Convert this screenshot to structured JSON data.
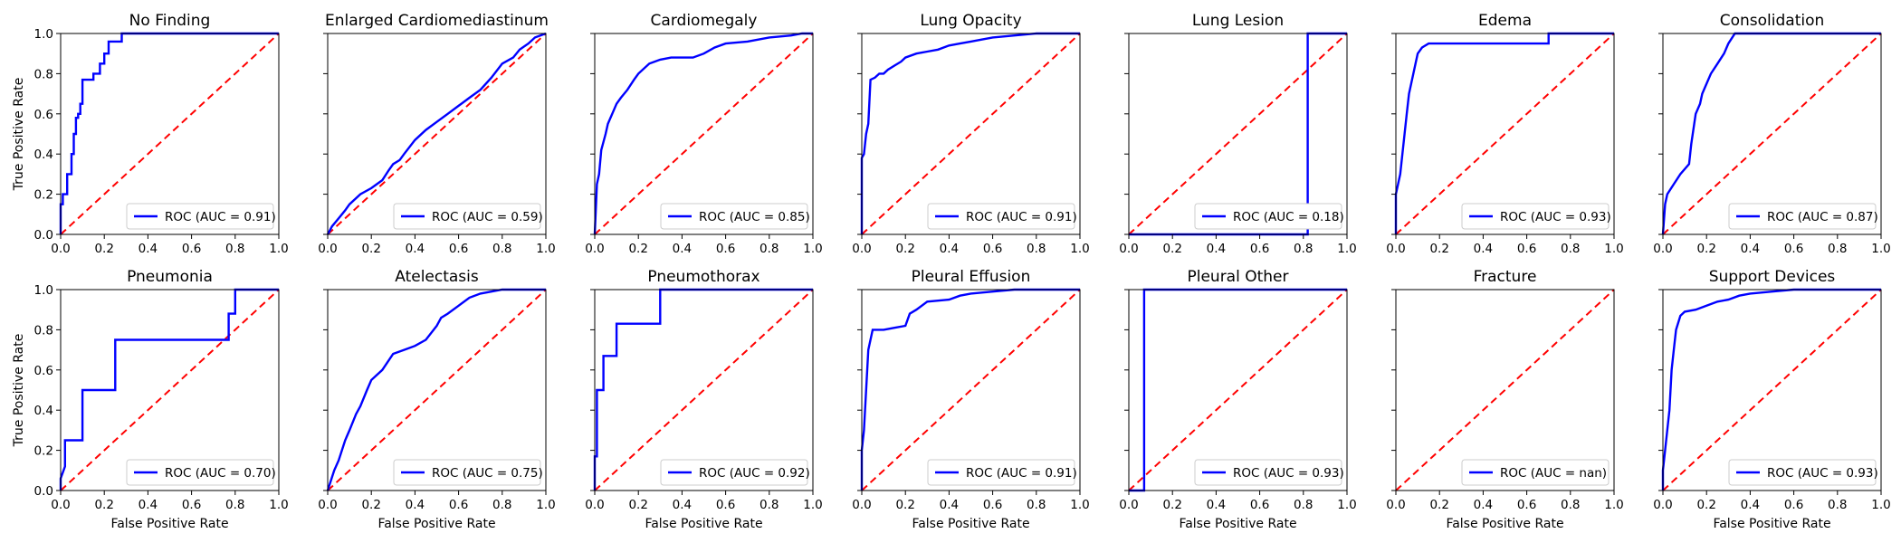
{
  "figure": {
    "xlabel": "False Positive Rate",
    "ylabel": "True Positive Rate",
    "x_ticks": [
      "0.0",
      "0.2",
      "0.4",
      "0.6",
      "0.8",
      "1.0"
    ],
    "y_ticks": [
      "0.0",
      "0.2",
      "0.4",
      "0.6",
      "0.8",
      "1.0"
    ],
    "roc_color": "#0000ff",
    "chance_color": "#ff0000"
  },
  "chart_data": [
    {
      "type": "line",
      "title": "No Finding",
      "legend": "ROC (AUC = 0.91)",
      "xlim": [
        0,
        1
      ],
      "ylim": [
        0,
        1
      ],
      "series": [
        {
          "x": [
            0,
            0,
            0.01,
            0.01,
            0.03,
            0.03,
            0.05,
            0.05,
            0.06,
            0.06,
            0.07,
            0.07,
            0.08,
            0.08,
            0.09,
            0.09,
            0.1,
            0.1,
            0.15,
            0.15,
            0.18,
            0.18,
            0.2,
            0.2,
            0.22,
            0.22,
            0.28,
            0.28,
            1
          ],
          "y": [
            0,
            0.15,
            0.15,
            0.2,
            0.2,
            0.3,
            0.3,
            0.4,
            0.4,
            0.5,
            0.5,
            0.58,
            0.58,
            0.6,
            0.6,
            0.65,
            0.65,
            0.77,
            0.77,
            0.8,
            0.8,
            0.85,
            0.85,
            0.9,
            0.9,
            0.96,
            0.96,
            1,
            1
          ]
        },
        {
          "x": [
            0,
            1
          ],
          "y": [
            0,
            1
          ]
        }
      ]
    },
    {
      "type": "line",
      "title": "Enlarged Cardiomediastinum",
      "legend": "ROC (AUC = 0.59)",
      "xlim": [
        0,
        1
      ],
      "ylim": [
        0,
        1
      ],
      "series": [
        {
          "x": [
            0,
            0.02,
            0.05,
            0.08,
            0.1,
            0.15,
            0.2,
            0.25,
            0.28,
            0.3,
            0.33,
            0.35,
            0.4,
            0.45,
            0.5,
            0.55,
            0.6,
            0.65,
            0.7,
            0.75,
            0.8,
            0.85,
            0.88,
            0.92,
            0.95,
            1
          ],
          "y": [
            0,
            0.04,
            0.08,
            0.12,
            0.15,
            0.2,
            0.23,
            0.27,
            0.32,
            0.35,
            0.37,
            0.4,
            0.47,
            0.52,
            0.56,
            0.6,
            0.64,
            0.68,
            0.72,
            0.78,
            0.85,
            0.88,
            0.92,
            0.95,
            0.98,
            1
          ]
        },
        {
          "x": [
            0,
            1
          ],
          "y": [
            0,
            1
          ]
        }
      ]
    },
    {
      "type": "line",
      "title": "Cardiomegaly",
      "legend": "ROC (AUC = 0.85)",
      "xlim": [
        0,
        1
      ],
      "ylim": [
        0,
        1
      ],
      "series": [
        {
          "x": [
            0,
            0.01,
            0.02,
            0.03,
            0.05,
            0.06,
            0.08,
            0.1,
            0.12,
            0.15,
            0.18,
            0.2,
            0.25,
            0.3,
            0.35,
            0.4,
            0.45,
            0.5,
            0.55,
            0.6,
            0.7,
            0.8,
            0.9,
            0.95,
            1
          ],
          "y": [
            0,
            0.25,
            0.3,
            0.42,
            0.5,
            0.55,
            0.6,
            0.65,
            0.68,
            0.72,
            0.77,
            0.8,
            0.85,
            0.87,
            0.88,
            0.88,
            0.88,
            0.9,
            0.93,
            0.95,
            0.96,
            0.98,
            0.99,
            1,
            1
          ]
        },
        {
          "x": [
            0,
            1
          ],
          "y": [
            0,
            1
          ]
        }
      ]
    },
    {
      "type": "line",
      "title": "Lung Opacity",
      "legend": "ROC (AUC = 0.91)",
      "xlim": [
        0,
        1
      ],
      "ylim": [
        0,
        1
      ],
      "series": [
        {
          "x": [
            0,
            0,
            0.01,
            0.02,
            0.03,
            0.04,
            0.06,
            0.08,
            0.1,
            0.12,
            0.15,
            0.18,
            0.2,
            0.25,
            0.3,
            0.35,
            0.4,
            0.45,
            0.5,
            0.55,
            0.6,
            0.7,
            0.8,
            1
          ],
          "y": [
            0,
            0.38,
            0.4,
            0.5,
            0.55,
            0.77,
            0.78,
            0.8,
            0.8,
            0.82,
            0.84,
            0.86,
            0.88,
            0.9,
            0.91,
            0.92,
            0.94,
            0.95,
            0.96,
            0.97,
            0.98,
            0.99,
            1,
            1
          ]
        },
        {
          "x": [
            0,
            1
          ],
          "y": [
            0,
            1
          ]
        }
      ]
    },
    {
      "type": "line",
      "title": "Lung Lesion",
      "legend": "ROC (AUC = 0.18)",
      "xlim": [
        0,
        1
      ],
      "ylim": [
        0,
        1
      ],
      "series": [
        {
          "x": [
            0,
            0.82,
            0.82,
            1
          ],
          "y": [
            0,
            0,
            1,
            1
          ]
        },
        {
          "x": [
            0,
            1
          ],
          "y": [
            0,
            1
          ]
        }
      ]
    },
    {
      "type": "line",
      "title": "Edema",
      "legend": "ROC (AUC = 0.93)",
      "xlim": [
        0,
        1
      ],
      "ylim": [
        0,
        1
      ],
      "series": [
        {
          "x": [
            0,
            0,
            0.02,
            0.03,
            0.04,
            0.05,
            0.06,
            0.07,
            0.08,
            0.09,
            0.1,
            0.12,
            0.15,
            0.7,
            0.7,
            1
          ],
          "y": [
            0,
            0.2,
            0.3,
            0.4,
            0.5,
            0.6,
            0.7,
            0.75,
            0.8,
            0.85,
            0.9,
            0.93,
            0.95,
            0.95,
            1,
            1
          ]
        },
        {
          "x": [
            0,
            1
          ],
          "y": [
            0,
            1
          ]
        }
      ]
    },
    {
      "type": "line",
      "title": "Consolidation",
      "legend": "ROC (AUC = 0.87)",
      "xlim": [
        0,
        1
      ],
      "ylim": [
        0,
        1
      ],
      "series": [
        {
          "x": [
            0,
            0.01,
            0.02,
            0.05,
            0.08,
            0.12,
            0.13,
            0.15,
            0.17,
            0.18,
            0.2,
            0.22,
            0.25,
            0.28,
            0.3,
            0.33,
            1
          ],
          "y": [
            0,
            0.15,
            0.2,
            0.25,
            0.3,
            0.35,
            0.45,
            0.6,
            0.65,
            0.7,
            0.75,
            0.8,
            0.85,
            0.9,
            0.95,
            1,
            1
          ]
        },
        {
          "x": [
            0,
            1
          ],
          "y": [
            0,
            1
          ]
        }
      ]
    },
    {
      "type": "line",
      "title": "Pneumonia",
      "legend": "ROC (AUC = 0.70)",
      "xlim": [
        0,
        1
      ],
      "ylim": [
        0,
        1
      ],
      "series": [
        {
          "x": [
            0,
            0,
            0.02,
            0.02,
            0.1,
            0.1,
            0.25,
            0.25,
            0.77,
            0.77,
            0.8,
            0.8,
            1
          ],
          "y": [
            0,
            0.06,
            0.12,
            0.25,
            0.25,
            0.5,
            0.5,
            0.75,
            0.75,
            0.88,
            0.88,
            1,
            1
          ]
        },
        {
          "x": [
            0,
            1
          ],
          "y": [
            0,
            1
          ]
        }
      ]
    },
    {
      "type": "line",
      "title": "Atelectasis",
      "legend": "ROC (AUC = 0.75)",
      "xlim": [
        0,
        1
      ],
      "ylim": [
        0,
        1
      ],
      "series": [
        {
          "x": [
            0,
            0.03,
            0.05,
            0.08,
            0.1,
            0.13,
            0.15,
            0.18,
            0.2,
            0.25,
            0.3,
            0.35,
            0.4,
            0.45,
            0.5,
            0.52,
            0.55,
            0.6,
            0.65,
            0.7,
            0.8,
            1
          ],
          "y": [
            0,
            0.1,
            0.15,
            0.25,
            0.3,
            0.38,
            0.42,
            0.5,
            0.55,
            0.6,
            0.68,
            0.7,
            0.72,
            0.75,
            0.82,
            0.86,
            0.88,
            0.92,
            0.96,
            0.98,
            1,
            1
          ]
        },
        {
          "x": [
            0,
            1
          ],
          "y": [
            0,
            1
          ]
        }
      ]
    },
    {
      "type": "line",
      "title": "Pneumothorax",
      "legend": "ROC (AUC = 0.92)",
      "xlim": [
        0,
        1
      ],
      "ylim": [
        0,
        1
      ],
      "series": [
        {
          "x": [
            0,
            0,
            0.01,
            0.01,
            0.04,
            0.04,
            0.1,
            0.1,
            0.3,
            0.3,
            1
          ],
          "y": [
            0,
            0.17,
            0.17,
            0.5,
            0.5,
            0.67,
            0.67,
            0.83,
            0.83,
            1,
            1
          ]
        },
        {
          "x": [
            0,
            1
          ],
          "y": [
            0,
            1
          ]
        }
      ]
    },
    {
      "type": "line",
      "title": "Pleural Effusion",
      "legend": "ROC (AUC = 0.91)",
      "xlim": [
        0,
        1
      ],
      "ylim": [
        0,
        1
      ],
      "series": [
        {
          "x": [
            0,
            0,
            0.01,
            0.02,
            0.03,
            0.04,
            0.05,
            0.1,
            0.15,
            0.2,
            0.22,
            0.25,
            0.3,
            0.4,
            0.45,
            0.5,
            0.6,
            0.7,
            1
          ],
          "y": [
            0,
            0.2,
            0.3,
            0.5,
            0.7,
            0.75,
            0.8,
            0.8,
            0.81,
            0.82,
            0.88,
            0.9,
            0.94,
            0.95,
            0.97,
            0.98,
            0.99,
            1,
            1
          ]
        },
        {
          "x": [
            0,
            1
          ],
          "y": [
            0,
            1
          ]
        }
      ]
    },
    {
      "type": "line",
      "title": "Pleural Other",
      "legend": "ROC (AUC = 0.93)",
      "xlim": [
        0,
        1
      ],
      "ylim": [
        0,
        1
      ],
      "series": [
        {
          "x": [
            0,
            0.07,
            0.07,
            1
          ],
          "y": [
            0,
            0,
            1,
            1
          ]
        },
        {
          "x": [
            0,
            1
          ],
          "y": [
            0,
            1
          ]
        }
      ]
    },
    {
      "type": "line",
      "title": "Fracture",
      "legend": "ROC (AUC = nan)",
      "xlim": [
        0,
        1
      ],
      "ylim": [
        0,
        1
      ],
      "series": [
        {
          "x": [],
          "y": []
        },
        {
          "x": [
            0,
            1
          ],
          "y": [
            0,
            1
          ]
        }
      ]
    },
    {
      "type": "line",
      "title": "Support Devices",
      "legend": "ROC (AUC = 0.93)",
      "xlim": [
        0,
        1
      ],
      "ylim": [
        0,
        1
      ],
      "series": [
        {
          "x": [
            0,
            0,
            0.01,
            0.02,
            0.03,
            0.04,
            0.05,
            0.06,
            0.08,
            0.1,
            0.15,
            0.2,
            0.25,
            0.3,
            0.35,
            0.4,
            0.5,
            0.6,
            0.7,
            1
          ],
          "y": [
            0,
            0.1,
            0.2,
            0.3,
            0.4,
            0.6,
            0.7,
            0.8,
            0.87,
            0.89,
            0.9,
            0.92,
            0.94,
            0.95,
            0.97,
            0.98,
            0.99,
            1,
            1,
            1
          ]
        },
        {
          "x": [
            0,
            1
          ],
          "y": [
            0,
            1
          ]
        }
      ]
    }
  ]
}
